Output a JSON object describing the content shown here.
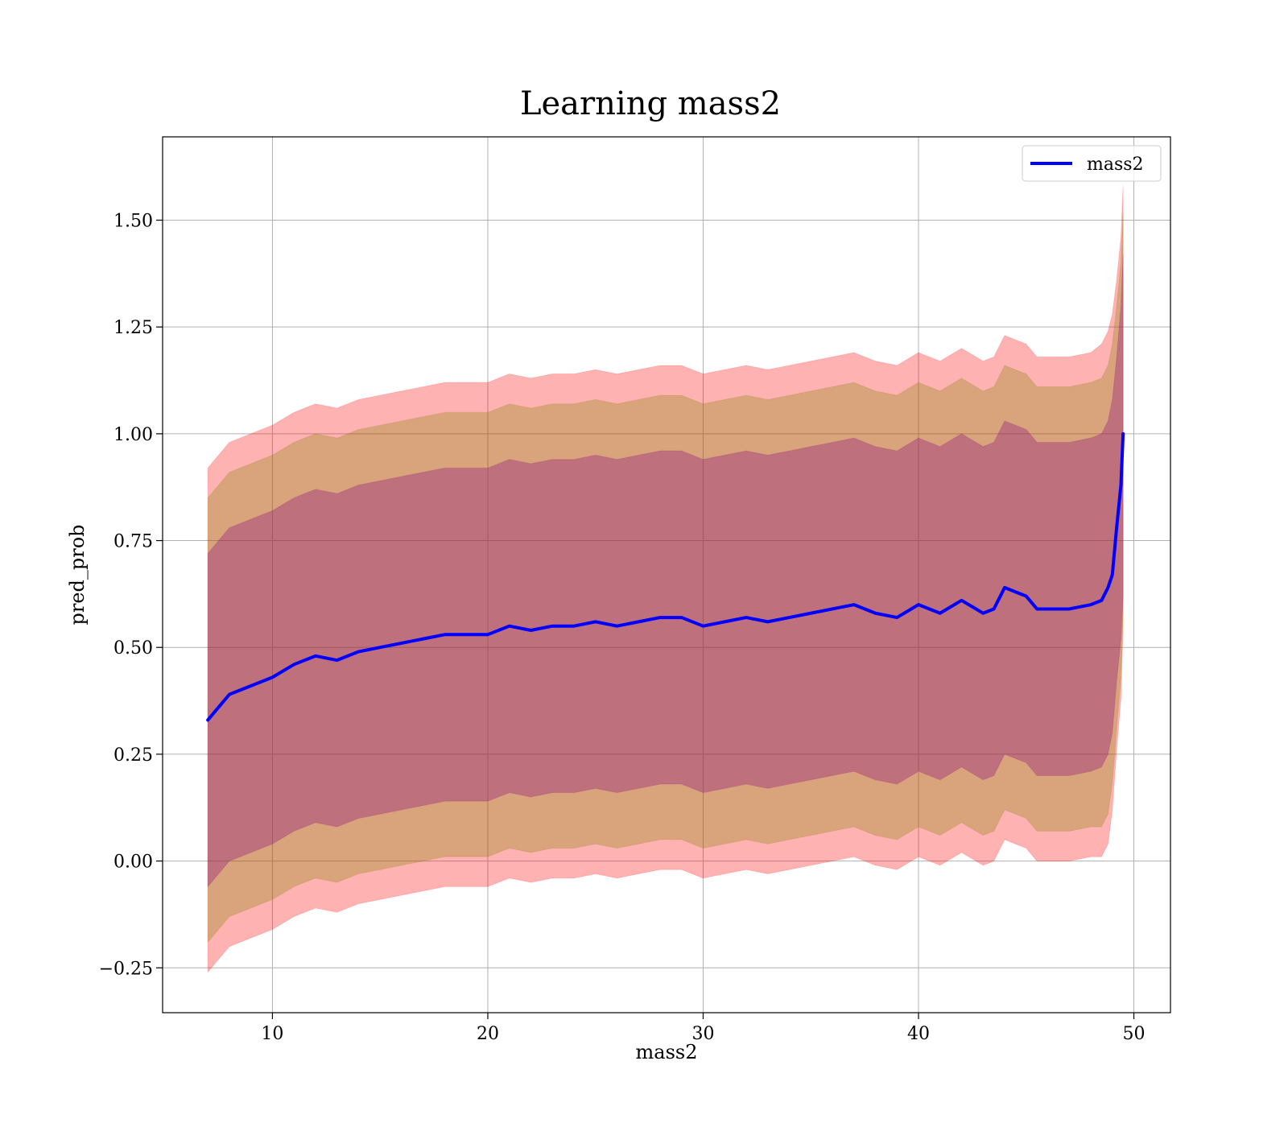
{
  "chart_data": {
    "type": "line",
    "title": "Learning mass2",
    "xlabel": "mass2",
    "ylabel": "pred_prob",
    "xlim": [
      4.9,
      51.7
    ],
    "ylim": [
      -0.355,
      1.695
    ],
    "x_ticks": [
      10,
      20,
      30,
      40,
      50
    ],
    "x_tick_labels": [
      "10",
      "20",
      "30",
      "40",
      "50"
    ],
    "y_ticks": [
      -0.25,
      0.0,
      0.25,
      0.5,
      0.75,
      1.0,
      1.25,
      1.5
    ],
    "y_tick_labels": [
      "−0.25",
      "0.00",
      "0.25",
      "0.50",
      "0.75",
      "1.00",
      "1.25",
      "1.50"
    ],
    "grid": true,
    "legend": {
      "position": "top-right",
      "entries": [
        "mass2"
      ]
    },
    "series": [
      {
        "name": "mass2",
        "color": "#0000ff",
        "x": [
          7.0,
          7.5,
          8.0,
          9.0,
          10.0,
          11.0,
          12.0,
          13.0,
          14.0,
          15.0,
          16.0,
          17.0,
          18.0,
          19.0,
          20.0,
          21.0,
          22.0,
          23.0,
          24.0,
          25.0,
          26.0,
          27.0,
          28.0,
          29.0,
          30.0,
          31.0,
          32.0,
          33.0,
          34.0,
          35.0,
          36.0,
          37.0,
          38.0,
          39.0,
          40.0,
          41.0,
          42.0,
          43.0,
          43.5,
          44.0,
          44.5,
          45.0,
          45.5,
          46.0,
          47.0,
          48.0,
          48.5,
          48.8,
          49.0,
          49.2,
          49.4,
          49.5
        ],
        "y": [
          0.33,
          0.36,
          0.39,
          0.41,
          0.43,
          0.46,
          0.48,
          0.47,
          0.49,
          0.5,
          0.51,
          0.52,
          0.53,
          0.53,
          0.53,
          0.55,
          0.54,
          0.55,
          0.55,
          0.56,
          0.55,
          0.56,
          0.57,
          0.57,
          0.55,
          0.56,
          0.57,
          0.56,
          0.57,
          0.58,
          0.59,
          0.6,
          0.58,
          0.57,
          0.6,
          0.58,
          0.61,
          0.58,
          0.59,
          0.64,
          0.63,
          0.62,
          0.59,
          0.59,
          0.59,
          0.6,
          0.61,
          0.64,
          0.67,
          0.78,
          0.88,
          1.0
        ]
      }
    ],
    "bands": [
      {
        "color": "#ff0000",
        "opacity": 0.3,
        "lower": [
          -0.26,
          -0.23,
          -0.2,
          -0.18,
          -0.16,
          -0.13,
          -0.11,
          -0.12,
          -0.1,
          -0.09,
          -0.08,
          -0.07,
          -0.06,
          -0.06,
          -0.06,
          -0.04,
          -0.05,
          -0.04,
          -0.04,
          -0.03,
          -0.04,
          -0.03,
          -0.02,
          -0.02,
          -0.04,
          -0.03,
          -0.02,
          -0.03,
          -0.02,
          -0.01,
          0.0,
          0.01,
          -0.01,
          -0.02,
          0.01,
          -0.01,
          0.02,
          -0.01,
          0.0,
          0.05,
          0.04,
          0.03,
          0.0,
          0.0,
          0.0,
          0.01,
          0.01,
          0.04,
          0.12,
          0.26,
          0.38,
          0.55
        ],
        "upper": [
          0.92,
          0.95,
          0.98,
          1.0,
          1.02,
          1.05,
          1.07,
          1.06,
          1.08,
          1.09,
          1.1,
          1.11,
          1.12,
          1.12,
          1.12,
          1.14,
          1.13,
          1.14,
          1.14,
          1.15,
          1.14,
          1.15,
          1.16,
          1.16,
          1.14,
          1.15,
          1.16,
          1.15,
          1.16,
          1.17,
          1.18,
          1.19,
          1.17,
          1.16,
          1.19,
          1.17,
          1.2,
          1.17,
          1.18,
          1.23,
          1.22,
          1.21,
          1.18,
          1.18,
          1.18,
          1.19,
          1.21,
          1.24,
          1.28,
          1.36,
          1.46,
          1.58
        ]
      },
      {
        "color": "#808000",
        "opacity": 0.3,
        "lower": [
          -0.19,
          -0.16,
          -0.13,
          -0.11,
          -0.09,
          -0.06,
          -0.04,
          -0.05,
          -0.03,
          -0.02,
          -0.01,
          0.0,
          0.01,
          0.01,
          0.01,
          0.03,
          0.02,
          0.03,
          0.03,
          0.04,
          0.03,
          0.04,
          0.05,
          0.05,
          0.03,
          0.04,
          0.05,
          0.04,
          0.05,
          0.06,
          0.07,
          0.08,
          0.06,
          0.05,
          0.08,
          0.06,
          0.09,
          0.06,
          0.07,
          0.12,
          0.11,
          0.1,
          0.07,
          0.07,
          0.07,
          0.08,
          0.08,
          0.11,
          0.18,
          0.31,
          0.43,
          0.58
        ],
        "upper": [
          0.85,
          0.88,
          0.91,
          0.93,
          0.95,
          0.98,
          1.0,
          0.99,
          1.01,
          1.02,
          1.03,
          1.04,
          1.05,
          1.05,
          1.05,
          1.07,
          1.06,
          1.07,
          1.07,
          1.08,
          1.07,
          1.08,
          1.09,
          1.09,
          1.07,
          1.08,
          1.09,
          1.08,
          1.09,
          1.1,
          1.11,
          1.12,
          1.1,
          1.09,
          1.12,
          1.1,
          1.13,
          1.1,
          1.11,
          1.16,
          1.15,
          1.14,
          1.11,
          1.11,
          1.11,
          1.12,
          1.13,
          1.16,
          1.21,
          1.3,
          1.4,
          1.52
        ]
      },
      {
        "color": "#800080",
        "opacity": 0.3,
        "lower": [
          -0.06,
          -0.03,
          0.0,
          0.02,
          0.04,
          0.07,
          0.09,
          0.08,
          0.1,
          0.11,
          0.12,
          0.13,
          0.14,
          0.14,
          0.14,
          0.16,
          0.15,
          0.16,
          0.16,
          0.17,
          0.16,
          0.17,
          0.18,
          0.18,
          0.16,
          0.17,
          0.18,
          0.17,
          0.18,
          0.19,
          0.2,
          0.21,
          0.19,
          0.18,
          0.21,
          0.19,
          0.22,
          0.19,
          0.2,
          0.25,
          0.24,
          0.23,
          0.2,
          0.2,
          0.2,
          0.21,
          0.22,
          0.25,
          0.3,
          0.42,
          0.52,
          0.62
        ],
        "upper": [
          0.72,
          0.75,
          0.78,
          0.8,
          0.82,
          0.85,
          0.87,
          0.86,
          0.88,
          0.89,
          0.9,
          0.91,
          0.92,
          0.92,
          0.92,
          0.94,
          0.93,
          0.94,
          0.94,
          0.95,
          0.94,
          0.95,
          0.96,
          0.96,
          0.94,
          0.95,
          0.96,
          0.95,
          0.96,
          0.97,
          0.98,
          0.99,
          0.97,
          0.96,
          0.99,
          0.97,
          1.0,
          0.97,
          0.98,
          1.03,
          1.02,
          1.01,
          0.98,
          0.98,
          0.98,
          0.99,
          1.0,
          1.03,
          1.08,
          1.18,
          1.3,
          1.42
        ]
      }
    ]
  }
}
